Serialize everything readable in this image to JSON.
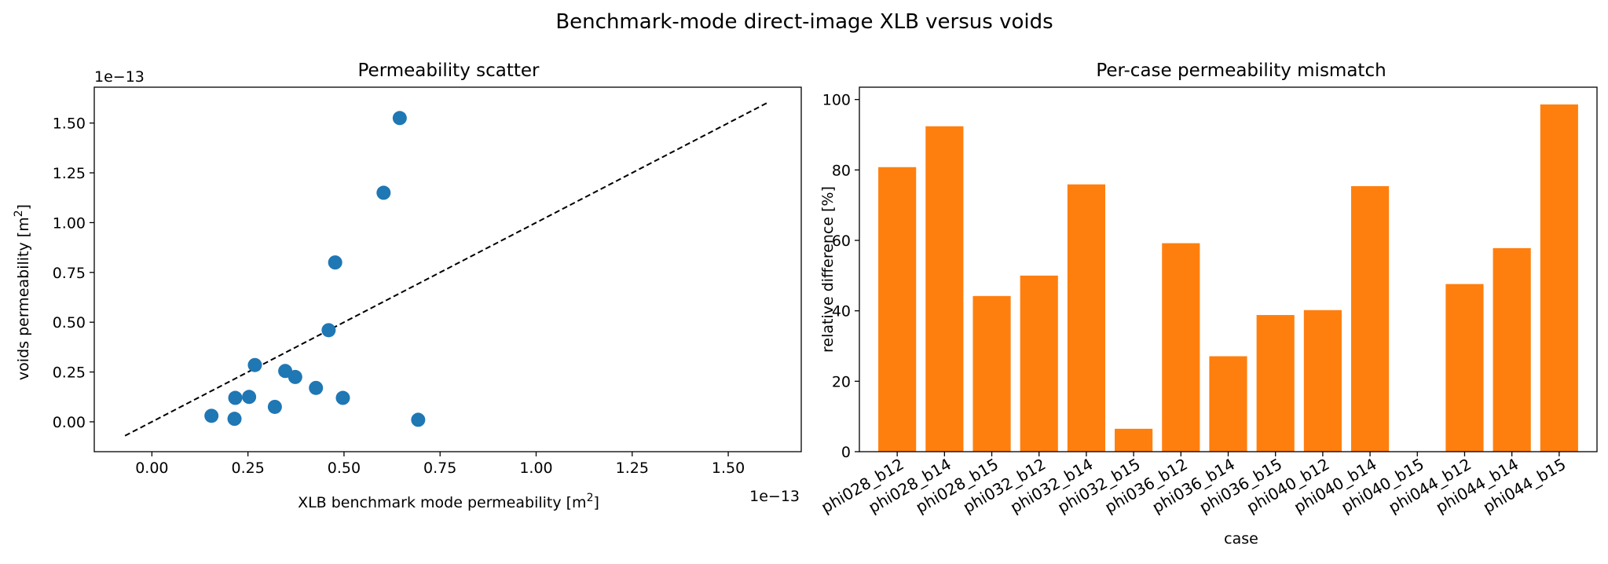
{
  "figure": {
    "suptitle": "Benchmark-mode direct-image XLB versus voids"
  },
  "chart_data": [
    {
      "type": "scatter",
      "title": "Permeability scatter",
      "xlabel": "XLB benchmark mode permeability [m",
      "xlabel_sup": "2",
      "xlabel_end": "]",
      "ylabel": "voids permeability [m",
      "ylabel_sup": "2",
      "ylabel_end": "]",
      "x_offset_label": "1e−13",
      "y_offset_label": "1e−13",
      "xlim": [
        -0.15,
        1.69
      ],
      "ylim": [
        -0.15,
        1.68
      ],
      "xticks": [
        0.0,
        0.25,
        0.5,
        0.75,
        1.0,
        1.25,
        1.5
      ],
      "xtick_labels": [
        "0.00",
        "0.25",
        "0.50",
        "0.75",
        "1.00",
        "1.25",
        "1.50"
      ],
      "yticks": [
        0.0,
        0.25,
        0.5,
        0.75,
        1.0,
        1.25,
        1.5
      ],
      "ytick_labels": [
        "0.00",
        "0.25",
        "0.50",
        "0.75",
        "1.00",
        "1.25",
        "1.50"
      ],
      "points_color": "#1f77b4",
      "reference_line": {
        "from": [
          -0.07,
          -0.07
        ],
        "to": [
          1.6,
          1.6
        ],
        "style": "dashed",
        "color": "#000000"
      },
      "x": [
        0.645,
        0.603,
        0.477,
        0.46,
        0.268,
        0.347,
        0.373,
        0.427,
        0.497,
        0.217,
        0.253,
        0.32,
        0.155,
        0.215,
        0.693
      ],
      "y": [
        1.525,
        1.15,
        0.8,
        0.46,
        0.285,
        0.255,
        0.225,
        0.17,
        0.12,
        0.12,
        0.125,
        0.075,
        0.03,
        0.015,
        0.01
      ]
    },
    {
      "type": "bar",
      "title": "Per-case permeability mismatch",
      "xlabel": "case",
      "ylabel": "relative difference [%]",
      "ylim": [
        0,
        103.5
      ],
      "yticks": [
        0,
        20,
        40,
        60,
        80,
        100
      ],
      "ytick_labels": [
        "0",
        "20",
        "40",
        "60",
        "80",
        "100"
      ],
      "bar_color": "#ff7f0e",
      "categories": [
        "phi028_b12",
        "phi028_b14",
        "phi028_b15",
        "phi032_b12",
        "phi032_b14",
        "phi032_b15",
        "phi036_b12",
        "phi036_b14",
        "phi036_b15",
        "phi040_b12",
        "phi040_b14",
        "phi040_b15",
        "phi044_b12",
        "phi044_b14",
        "phi044_b15"
      ],
      "values": [
        80.8,
        92.4,
        44.2,
        50.0,
        75.9,
        6.5,
        59.2,
        27.1,
        38.8,
        40.2,
        75.4,
        0.0,
        47.6,
        57.8,
        98.6
      ]
    }
  ]
}
